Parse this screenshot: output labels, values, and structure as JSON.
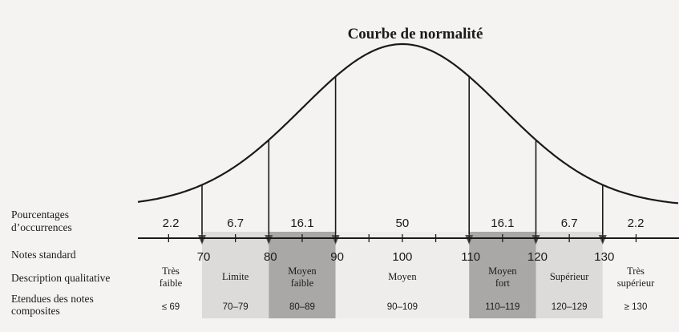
{
  "title": "Courbe de normalité",
  "row_labels": {
    "pct_line1": "Pourcentages",
    "pct_line2": "d’occurrences",
    "standard": "Notes standard",
    "qualitative": "Description qualitative",
    "comp_line1": "Etendues des notes",
    "comp_line2": "composites"
  },
  "percentages": [
    "2.2",
    "6.7",
    "16.1",
    "50",
    "16.1",
    "6.7",
    "2.2"
  ],
  "standard_scores": [
    "70",
    "80",
    "90",
    "100",
    "110",
    "120",
    "130"
  ],
  "bands": [
    {
      "qual": [
        "Très",
        "faible"
      ],
      "range": "≤ 69",
      "shade": "#f4f3f1"
    },
    {
      "qual": [
        "Limite"
      ],
      "range": "70–79",
      "shade": "#dcdbd9"
    },
    {
      "qual": [
        "Moyen",
        "faible"
      ],
      "range": "80–89",
      "shade": "#a9a8a6"
    },
    {
      "qual": [
        "Moyen"
      ],
      "range": "90–109",
      "shade": "#eeedeb"
    },
    {
      "qual": [
        "Moyen",
        "fort"
      ],
      "range": "110–119",
      "shade": "#a9a8a6"
    },
    {
      "qual": [
        "Supérieur"
      ],
      "range": "120–129",
      "shade": "#dcdbd9"
    },
    {
      "qual": [
        "Très",
        "supérieur"
      ],
      "range": "≥ 130",
      "shade": "#f4f3f1"
    }
  ],
  "colors": {
    "ink": "#1a1a1a",
    "light": "#dcdbd9",
    "dark": "#a9a8a6",
    "paper": "#f4f3f1"
  }
}
